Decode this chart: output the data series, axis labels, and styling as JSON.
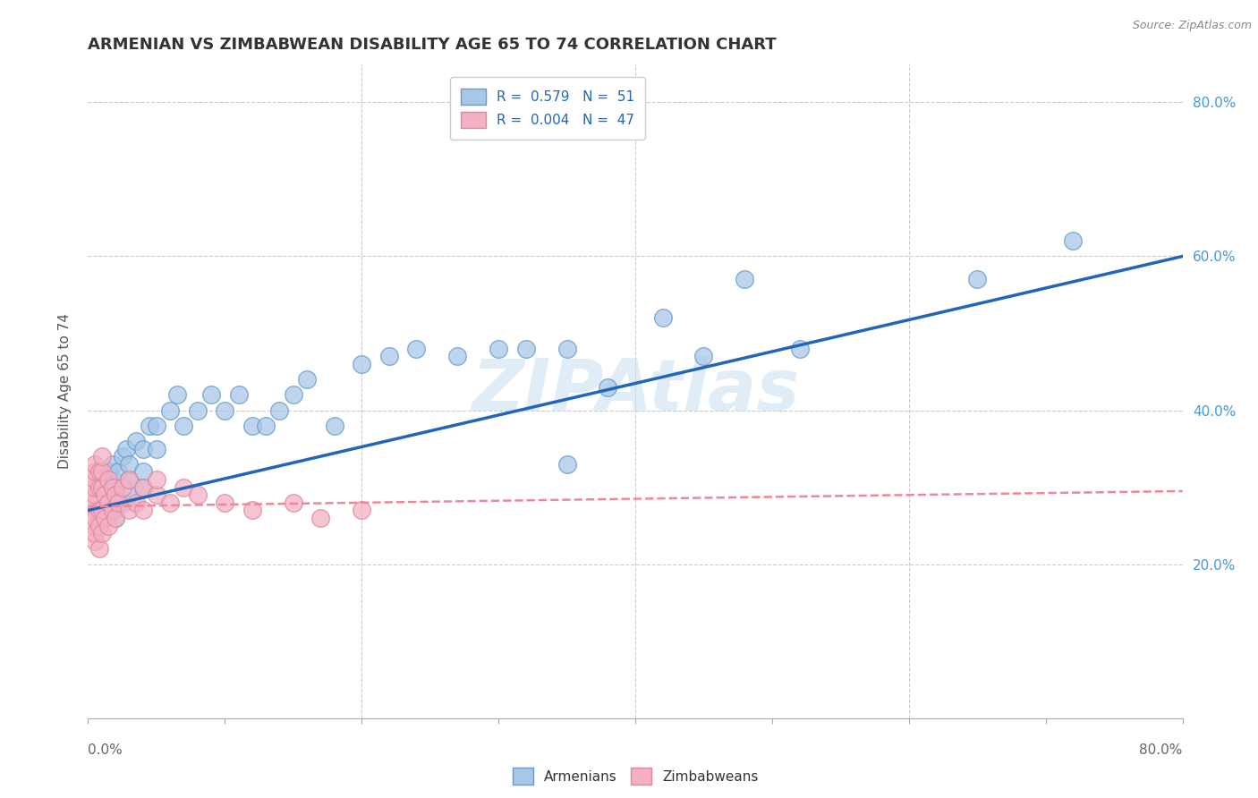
{
  "title": "ARMENIAN VS ZIMBABWEAN DISABILITY AGE 65 TO 74 CORRELATION CHART",
  "source": "Source: ZipAtlas.com",
  "ylabel": "Disability Age 65 to 74",
  "xlim": [
    0.0,
    0.8
  ],
  "ylim": [
    0.0,
    0.85
  ],
  "armenian_R": 0.579,
  "armenian_N": 51,
  "zimbabwean_R": 0.004,
  "zimbabwean_N": 47,
  "armenian_color": "#a8c8e8",
  "zimbabwean_color": "#f4b0c4",
  "armenian_edge_color": "#6699cc",
  "zimbabwean_edge_color": "#dd8899",
  "armenian_line_color": "#2266bb",
  "zimbabwean_line_color": "#ee8899",
  "background_color": "#ffffff",
  "grid_color": "#cccccc",
  "watermark": "ZIPAtlas",
  "armenian_scatter_x": [
    0.015,
    0.015,
    0.015,
    0.015,
    0.018,
    0.018,
    0.018,
    0.02,
    0.02,
    0.022,
    0.025,
    0.025,
    0.028,
    0.03,
    0.03,
    0.03,
    0.035,
    0.04,
    0.04,
    0.04,
    0.045,
    0.05,
    0.05,
    0.06,
    0.065,
    0.07,
    0.08,
    0.09,
    0.1,
    0.11,
    0.12,
    0.13,
    0.14,
    0.15,
    0.16,
    0.18,
    0.2,
    0.22,
    0.24,
    0.27,
    0.3,
    0.32,
    0.35,
    0.38,
    0.42,
    0.45,
    0.48,
    0.52,
    0.35,
    0.65,
    0.72
  ],
  "armenian_scatter_y": [
    0.3,
    0.32,
    0.27,
    0.29,
    0.31,
    0.33,
    0.28,
    0.3,
    0.26,
    0.32,
    0.34,
    0.28,
    0.35,
    0.31,
    0.33,
    0.29,
    0.36,
    0.35,
    0.32,
    0.3,
    0.38,
    0.38,
    0.35,
    0.4,
    0.42,
    0.38,
    0.4,
    0.42,
    0.4,
    0.42,
    0.38,
    0.38,
    0.4,
    0.42,
    0.44,
    0.38,
    0.46,
    0.47,
    0.48,
    0.47,
    0.48,
    0.48,
    0.48,
    0.43,
    0.52,
    0.47,
    0.57,
    0.48,
    0.33,
    0.57,
    0.62
  ],
  "zimbabwean_scatter_x": [
    0.005,
    0.005,
    0.005,
    0.005,
    0.005,
    0.005,
    0.005,
    0.005,
    0.005,
    0.005,
    0.005,
    0.008,
    0.008,
    0.008,
    0.008,
    0.008,
    0.01,
    0.01,
    0.01,
    0.01,
    0.01,
    0.012,
    0.012,
    0.015,
    0.015,
    0.015,
    0.018,
    0.018,
    0.02,
    0.02,
    0.022,
    0.025,
    0.03,
    0.03,
    0.035,
    0.04,
    0.04,
    0.05,
    0.05,
    0.06,
    0.07,
    0.08,
    0.1,
    0.12,
    0.15,
    0.17,
    0.2
  ],
  "zimbabwean_scatter_y": [
    0.23,
    0.25,
    0.27,
    0.28,
    0.29,
    0.3,
    0.31,
    0.32,
    0.33,
    0.26,
    0.24,
    0.22,
    0.25,
    0.27,
    0.3,
    0.32,
    0.24,
    0.27,
    0.3,
    0.32,
    0.34,
    0.26,
    0.29,
    0.25,
    0.28,
    0.31,
    0.27,
    0.3,
    0.26,
    0.29,
    0.28,
    0.3,
    0.27,
    0.31,
    0.28,
    0.3,
    0.27,
    0.29,
    0.31,
    0.28,
    0.3,
    0.29,
    0.28,
    0.27,
    0.28,
    0.26,
    0.27
  ],
  "armenian_line_x0": 0.0,
  "armenian_line_y0": 0.27,
  "armenian_line_x1": 0.8,
  "armenian_line_y1": 0.6,
  "zimbabwean_line_x0": 0.0,
  "zimbabwean_line_y0": 0.275,
  "zimbabwean_line_x1": 0.8,
  "zimbabwean_line_y1": 0.295,
  "title_fontsize": 13,
  "label_fontsize": 11,
  "tick_fontsize": 11,
  "legend_fontsize": 11
}
